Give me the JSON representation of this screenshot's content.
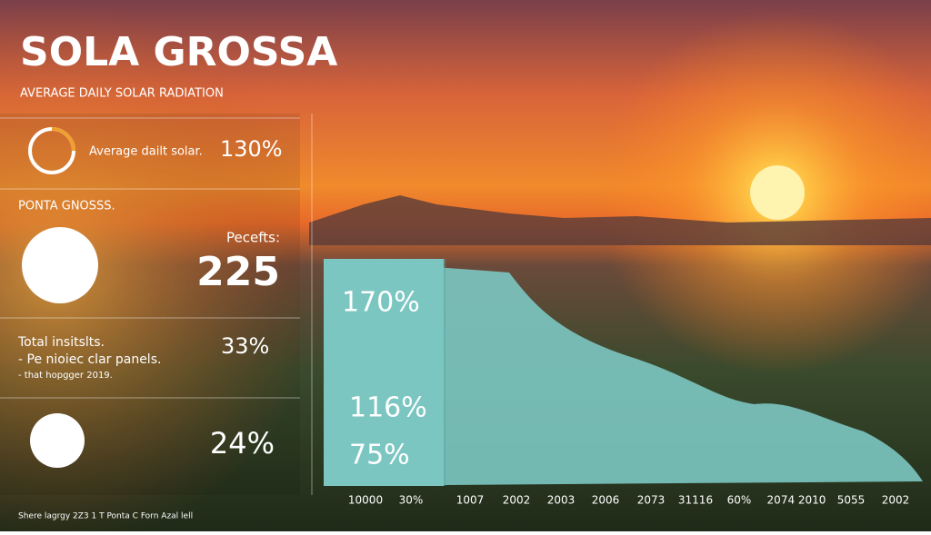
{
  "title": "SOLA GROSSA",
  "subtitle": "AVERAGE DAILY SOLAR RADIATION",
  "stats": {
    "gauge_label": "Average dailt solar.",
    "gauge_value": "130%",
    "section_label": "PONTA GNOSSS.",
    "big_label": "Pecefts:",
    "big_value": "225",
    "list": [
      "Total insitslts.",
      "- Pe nioiec clar panels.",
      "- that hopgger 2019."
    ],
    "list_value": "33%",
    "last_value": "24%"
  },
  "footer": "Shere lagrgy 2Z3 1 T Ponta C Forn Azal lell",
  "area_labels": [
    "170%",
    "116%",
    "75%"
  ],
  "x_labels": [
    "10000",
    "30%",
    "1007",
    "2002",
    "2003",
    "2006",
    "2073",
    "31116",
    "60%",
    "2074 2010",
    "5055",
    "2002"
  ]
}
